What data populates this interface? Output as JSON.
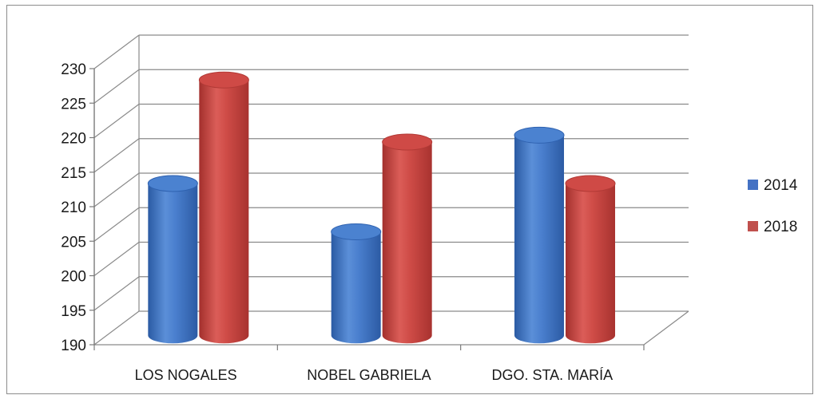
{
  "chart_data": {
    "type": "bar",
    "style": "3d-cylinder",
    "categories": [
      "LOS NOGALES",
      "NOBEL GABRIELA",
      "DGO. STA. MARÍA"
    ],
    "series": [
      {
        "name": "2014",
        "values": [
          212,
          205,
          219
        ],
        "color": "#3f74c2"
      },
      {
        "name": "2018",
        "values": [
          227,
          218,
          212
        ],
        "color": "#c54440"
      }
    ],
    "ylim": [
      190,
      230
    ],
    "yticks": [
      190,
      195,
      200,
      205,
      210,
      215,
      220,
      225,
      230
    ],
    "grid": true,
    "legend_position": "right"
  }
}
